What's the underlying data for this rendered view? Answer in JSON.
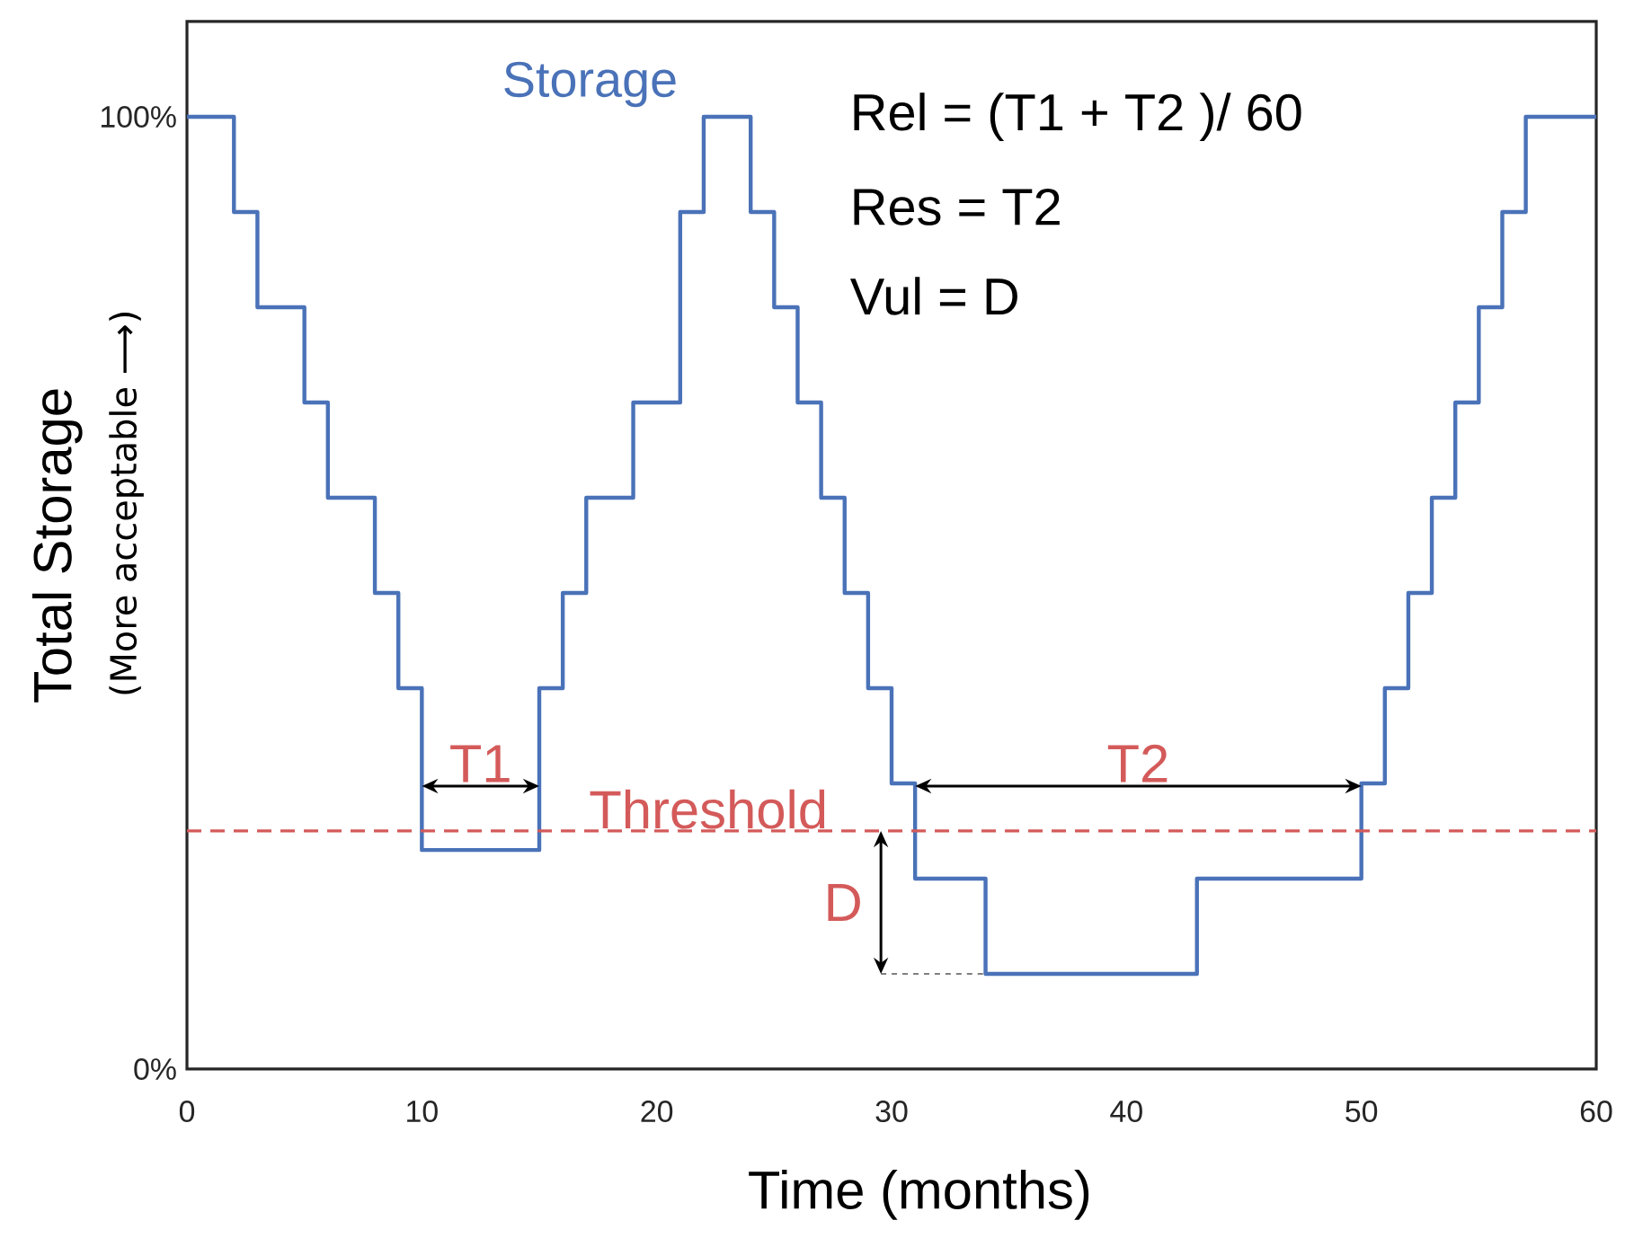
{
  "chart_data": {
    "type": "step",
    "xlabel": "Time (months)",
    "ylabel": "Total Storage",
    "xlim": [
      0,
      60
    ],
    "ylim": [
      0,
      110
    ],
    "xticks": [
      0,
      10,
      20,
      30,
      40,
      50,
      60
    ],
    "yticks": [
      {
        "value": 0,
        "label": "0%"
      },
      {
        "value": 100,
        "label": "100%"
      }
    ],
    "x": [
      0,
      2,
      3,
      5,
      6,
      8,
      9,
      10,
      15,
      16,
      17,
      19,
      21,
      22,
      24,
      25,
      26,
      27,
      28,
      29,
      30,
      31,
      34,
      43,
      50,
      51,
      52,
      53,
      54,
      55,
      56,
      57,
      60
    ],
    "series": [
      {
        "name": "Storage",
        "color": "#4a72b8",
        "values": [
          100,
          90,
          80,
          70,
          60,
          50,
          40,
          23,
          40,
          50,
          60,
          70,
          90,
          100,
          90,
          80,
          70,
          60,
          50,
          40,
          30,
          20,
          10,
          20,
          30,
          40,
          50,
          60,
          70,
          80,
          90,
          100,
          100
        ]
      }
    ],
    "ref_lines": [
      {
        "axis": "y",
        "value": 25,
        "label": "Threshold",
        "color": "#d45a5a",
        "line_style": "dashed"
      }
    ],
    "annotations": [
      "Rel = (T1 + T2 )/ 60",
      "Res = T2",
      "Vul = D",
      "T1",
      "T2",
      "D",
      "(More acceptable ⟶)"
    ],
    "legend": false
  }
}
